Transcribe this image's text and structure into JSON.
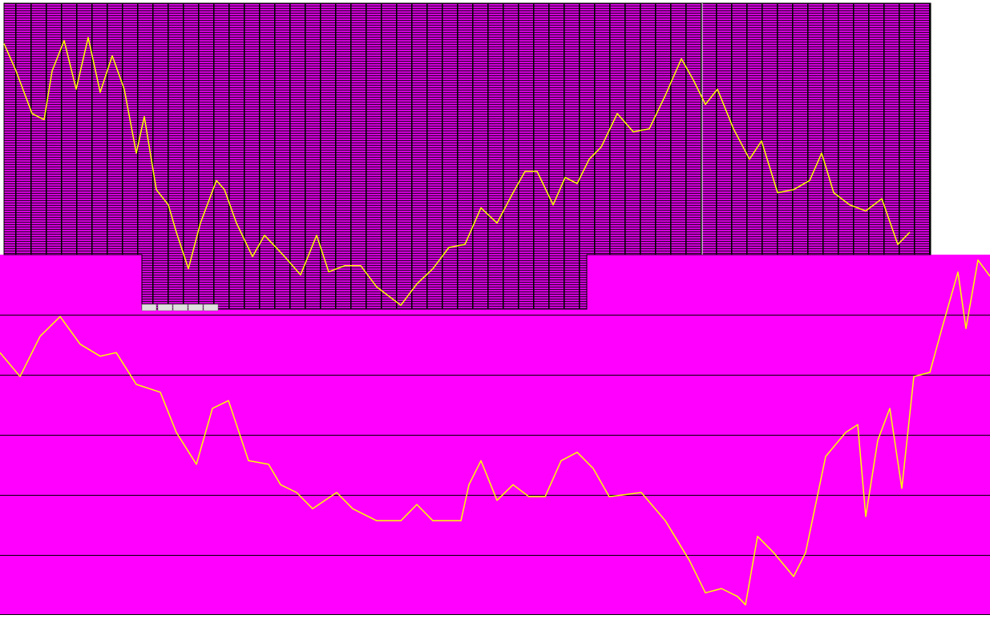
{
  "chart_data": [
    {
      "type": "line",
      "xlim": [
        0,
        1235
      ],
      "ylim": [
        0,
        100
      ],
      "series": [
        {
          "color": "#ffff00",
          "x": [
            5,
            20,
            40,
            55,
            65,
            80,
            95,
            110,
            125,
            140,
            155,
            170,
            180,
            195,
            210,
            220,
            235,
            250,
            270,
            280,
            295,
            315,
            330,
            355,
            375,
            395,
            410,
            430,
            450,
            470,
            500,
            520,
            540,
            560,
            580,
            600,
            620,
            640,
            655,
            670,
            690,
            705,
            720,
            735,
            750,
            770,
            790,
            810,
            830,
            850,
            865,
            880,
            895,
            915,
            935,
            950,
            970,
            990,
            1010,
            1025,
            1040,
            1060,
            1080,
            1100,
            1120,
            1135
          ],
          "values": [
            87,
            78,
            64,
            62,
            78,
            88,
            72,
            89,
            71,
            83,
            72,
            51,
            63,
            39,
            34,
            25,
            13,
            28,
            42,
            39,
            28,
            17,
            24,
            17,
            11,
            24,
            12,
            14,
            14,
            7,
            1,
            8,
            13,
            20,
            21,
            33,
            28,
            38,
            45,
            45,
            34,
            43,
            41,
            49,
            53,
            64,
            58,
            59,
            70,
            82,
            75,
            67,
            72,
            59,
            49,
            55,
            38,
            39,
            42,
            51,
            38,
            34,
            32,
            36,
            21,
            25
          ]
        }
      ]
    },
    {
      "type": "line",
      "xlim": [
        0,
        1235
      ],
      "ylim": [
        0,
        6
      ],
      "yticks": [
        1,
        2,
        3,
        4,
        5
      ],
      "grid": true,
      "series": [
        {
          "color": "#ffff00",
          "x": [
            0,
            25,
            50,
            75,
            100,
            125,
            145,
            170,
            200,
            220,
            245,
            265,
            285,
            310,
            335,
            350,
            370,
            390,
            420,
            440,
            470,
            500,
            520,
            540,
            575,
            585,
            600,
            620,
            640,
            660,
            680,
            700,
            720,
            740,
            760,
            800,
            830,
            860,
            880,
            900,
            920,
            930,
            945,
            965,
            990,
            1005,
            1030,
            1055,
            1070,
            1080,
            1095,
            1110,
            1125,
            1140,
            1160,
            1175,
            1195,
            1205,
            1220,
            1235
          ],
          "values": [
            4.37,
            3.97,
            4.64,
            4.97,
            4.51,
            4.31,
            4.37,
            3.84,
            3.71,
            3.04,
            2.51,
            3.44,
            3.57,
            2.57,
            2.51,
            2.17,
            2.04,
            1.77,
            2.04,
            1.77,
            1.57,
            1.57,
            1.84,
            1.57,
            1.57,
            2.17,
            2.57,
            1.91,
            2.17,
            1.97,
            1.97,
            2.57,
            2.71,
            2.44,
            1.97,
            2.04,
            1.57,
            0.91,
            0.37,
            0.44,
            0.31,
            0.17,
            1.31,
            1.04,
            0.64,
            1.04,
            2.64,
            3.04,
            3.17,
            1.64,
            2.91,
            3.44,
            2.11,
            3.97,
            4.04,
            4.77,
            5.71,
            4.77,
            5.91,
            5.64
          ]
        }
      ]
    }
  ]
}
